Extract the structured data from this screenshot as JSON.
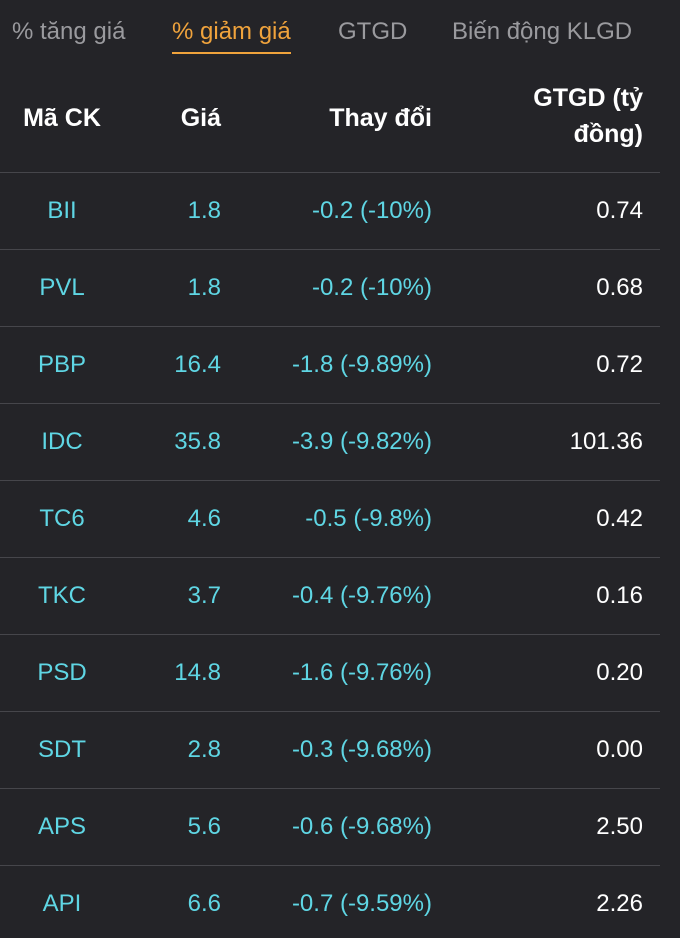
{
  "tabs": [
    "% tăng giá",
    "% giảm giá",
    "GTGD",
    "Biến động KLGD"
  ],
  "active_tab": 1,
  "table": {
    "headers": [
      "Mã CK",
      "Giá",
      "Thay đổi",
      "GTGD (tỷ đồng)"
    ],
    "rows": [
      [
        "BII",
        "1.8",
        "-0.2 (-10%)",
        "0.74"
      ],
      [
        "PVL",
        "1.8",
        "-0.2 (-10%)",
        "0.68"
      ],
      [
        "PBP",
        "16.4",
        "-1.8 (-9.89%)",
        "0.72"
      ],
      [
        "IDC",
        "35.8",
        "-3.9 (-9.82%)",
        "101.36"
      ],
      [
        "TC6",
        "4.6",
        "-0.5 (-9.8%)",
        "0.42"
      ],
      [
        "TKC",
        "3.7",
        "-0.4 (-9.76%)",
        "0.16"
      ],
      [
        "PSD",
        "14.8",
        "-1.6 (-9.76%)",
        "0.20"
      ],
      [
        "SDT",
        "2.8",
        "-0.3 (-9.68%)",
        "0.00"
      ],
      [
        "APS",
        "5.6",
        "-0.6 (-9.68%)",
        "2.50"
      ],
      [
        "API",
        "6.6",
        "-0.7 (-9.59%)",
        "2.26"
      ]
    ]
  }
}
